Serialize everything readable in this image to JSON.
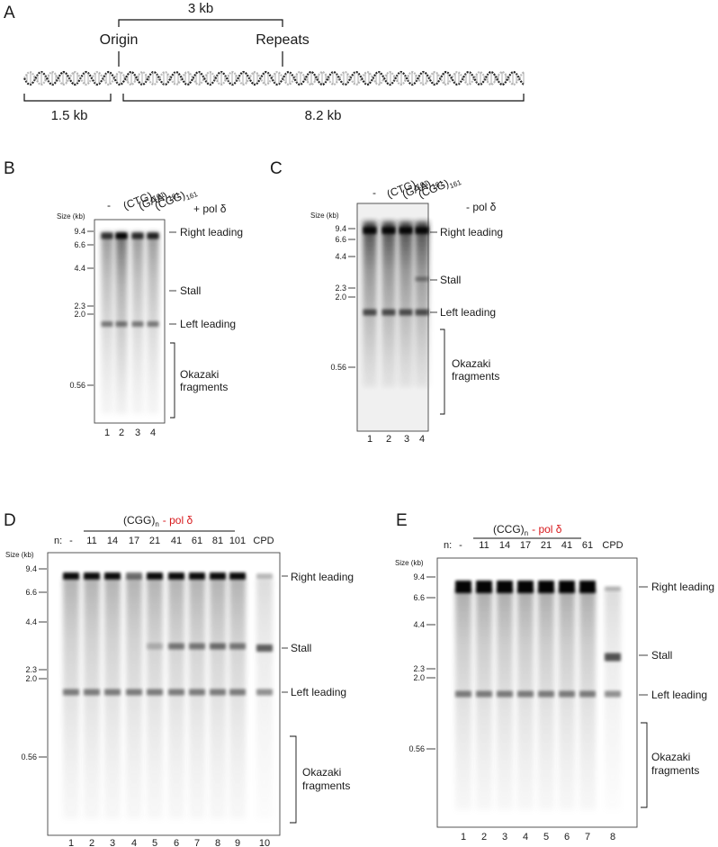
{
  "panel_a": {
    "letter": "A",
    "distance_top": "3 kb",
    "origin": "Origin",
    "repeats": "Repeats",
    "left_len": "1.5 kb",
    "right_len": "8.2 kb"
  },
  "size_label": "Size (kb)",
  "common_markers": [
    "9.4",
    "6.6",
    "4.4",
    "2.3",
    "2.0",
    "0.56"
  ],
  "band_labels": {
    "right_leading": "Right leading",
    "stall": "Stall",
    "left_leading": "Left leading",
    "okazaki_1": "Okazaki",
    "okazaki_2": "fragments"
  },
  "panel_b": {
    "letter": "B",
    "condition": "+ pol δ",
    "condition_color": "#1a9641",
    "lane_headers": [
      {
        "base": "-",
        "sub": ""
      },
      {
        "base": "(CTG)",
        "sub": "161"
      },
      {
        "base": "(GAA)",
        "sub": "161"
      },
      {
        "base": "(CGG)",
        "sub": "161"
      }
    ],
    "lane_numbers": [
      "1",
      "2",
      "3",
      "4"
    ]
  },
  "panel_c": {
    "letter": "C",
    "condition": "- pol δ",
    "condition_color": "#d7191c",
    "lane_headers": [
      {
        "base": "-",
        "sub": ""
      },
      {
        "base": "(CTG)",
        "sub": "161"
      },
      {
        "base": "(GAA)",
        "sub": "161"
      },
      {
        "base": "(CGG)",
        "sub": "161"
      }
    ],
    "lane_numbers": [
      "1",
      "2",
      "3",
      "4"
    ]
  },
  "panel_d": {
    "letter": "D",
    "group_base": "(CGG)",
    "group_sub": "n",
    "group_cond": "- pol δ",
    "cond_color": "#d7191c",
    "n_label": "n:",
    "lane_headers": [
      "-",
      "11",
      "14",
      "17",
      "21",
      "41",
      "61",
      "81",
      "101"
    ],
    "cpd": "CPD",
    "lane_numbers": [
      "1",
      "2",
      "3",
      "4",
      "5",
      "6",
      "7",
      "8",
      "9",
      "10"
    ]
  },
  "panel_e": {
    "letter": "E",
    "group_base": "(CCG)",
    "group_sub": "n",
    "group_cond": "- pol δ",
    "cond_color": "#d7191c",
    "n_label": "n:",
    "lane_headers": [
      "-",
      "11",
      "14",
      "17",
      "21",
      "41",
      "61"
    ],
    "cpd": "CPD",
    "lane_numbers": [
      "1",
      "2",
      "3",
      "4",
      "5",
      "6",
      "7",
      "8"
    ]
  }
}
